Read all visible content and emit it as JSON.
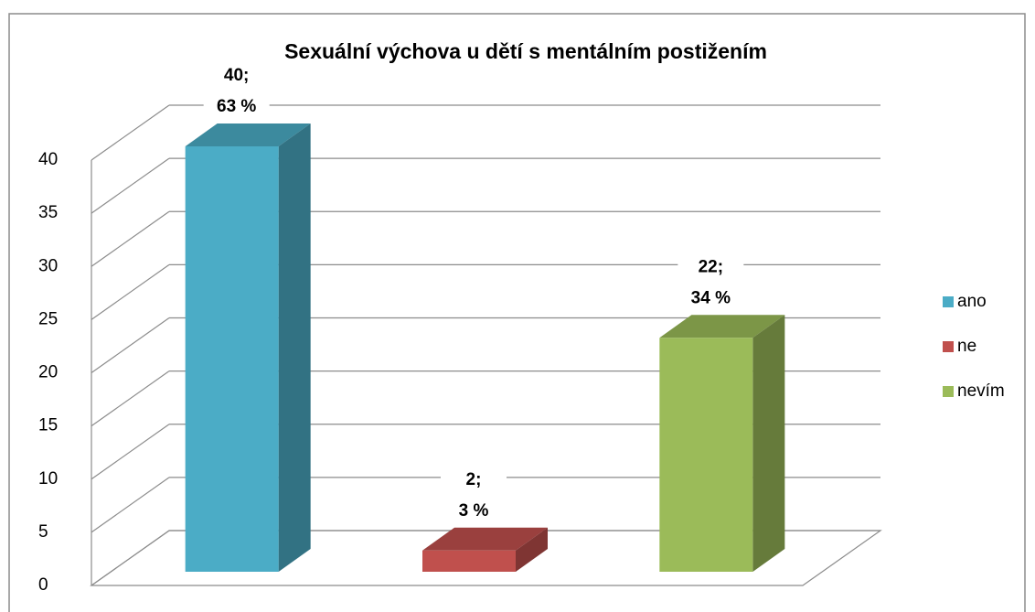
{
  "chart_data": {
    "type": "bar3d",
    "title": "Sexuální výchova u dětí s mentálním postižením",
    "series": [
      {
        "name": "ano",
        "color": "#4bacc6",
        "values": [
          40
        ],
        "value_labels": [
          [
            "40;",
            "63 %"
          ]
        ]
      },
      {
        "name": "ne",
        "color": "#c0504d",
        "values": [
          2
        ],
        "value_labels": [
          [
            "2;",
            "3 %"
          ]
        ]
      },
      {
        "name": "nevím",
        "color": "#9bbb59",
        "values": [
          22
        ],
        "value_labels": [
          [
            "22;",
            "34 %"
          ]
        ]
      }
    ],
    "ylim": [
      0,
      40
    ],
    "yticks": [
      0,
      5,
      10,
      15,
      20,
      25,
      30,
      35,
      40
    ],
    "grid": true,
    "legend": "right"
  }
}
